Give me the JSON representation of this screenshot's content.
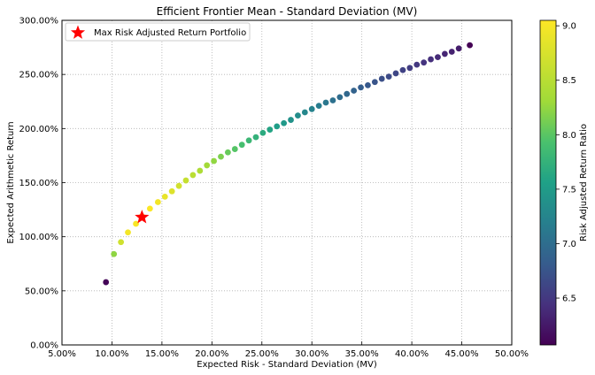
{
  "chart_data": {
    "type": "scatter",
    "title": "Efficient Frontier Mean - Standard Deviation (MV)",
    "xlabel": "Expected Risk - Standard Deviation (MV)",
    "ylabel": "Expected Arithmetic Return",
    "xlim": [
      0.05,
      0.5
    ],
    "ylim": [
      0.0,
      3.0
    ],
    "x_ticks": [
      0.05,
      0.1,
      0.15,
      0.2,
      0.25,
      0.3,
      0.35,
      0.4,
      0.45,
      0.5
    ],
    "x_tick_labels": [
      "5.00%",
      "10.00%",
      "15.00%",
      "20.00%",
      "25.00%",
      "30.00%",
      "35.00%",
      "40.00%",
      "45.00%",
      "50.00%"
    ],
    "y_ticks": [
      0.0,
      0.5,
      1.0,
      1.5,
      2.0,
      2.5,
      3.0
    ],
    "y_tick_labels": [
      "0.00%",
      "50.00%",
      "100.00%",
      "150.00%",
      "200.00%",
      "250.00%",
      "300.00%"
    ],
    "grid": true,
    "legend_placement": "top-left",
    "legend": [
      {
        "label": "Max Risk Adjusted Return Portfolio",
        "marker": "star",
        "color": "#ff0000"
      }
    ],
    "colorbar": {
      "label": "Risk Adjusted Return Ratio",
      "min": 6.07,
      "max": 9.05,
      "ticks": [
        6.5,
        7.0,
        7.5,
        8.0,
        8.5,
        9.0
      ],
      "tick_labels": [
        "6.5",
        "7.0",
        "7.5",
        "8.0",
        "8.5",
        "9.0"
      ],
      "colormap": "viridis"
    },
    "series": [
      {
        "x": [
          0.094,
          0.102,
          0.109,
          0.116,
          0.124,
          0.13,
          0.138,
          0.146,
          0.153,
          0.16,
          0.167,
          0.174,
          0.181,
          0.188,
          0.195,
          0.202,
          0.209,
          0.216,
          0.223,
          0.23,
          0.237,
          0.244,
          0.251,
          0.258,
          0.265,
          0.272,
          0.279,
          0.286,
          0.293,
          0.3,
          0.307,
          0.314,
          0.321,
          0.328,
          0.335,
          0.342,
          0.349,
          0.356,
          0.363,
          0.37,
          0.377,
          0.384,
          0.391,
          0.398,
          0.405,
          0.412,
          0.419,
          0.426,
          0.433,
          0.44,
          0.447,
          0.458
        ],
        "y": [
          0.58,
          0.84,
          0.95,
          1.04,
          1.12,
          1.19,
          1.26,
          1.32,
          1.37,
          1.42,
          1.47,
          1.52,
          1.57,
          1.61,
          1.66,
          1.7,
          1.74,
          1.78,
          1.81,
          1.85,
          1.89,
          1.92,
          1.96,
          1.99,
          2.02,
          2.05,
          2.08,
          2.12,
          2.15,
          2.18,
          2.21,
          2.24,
          2.26,
          2.29,
          2.32,
          2.35,
          2.38,
          2.4,
          2.43,
          2.46,
          2.48,
          2.51,
          2.54,
          2.56,
          2.59,
          2.61,
          2.64,
          2.66,
          2.69,
          2.71,
          2.74,
          2.77
        ],
        "c": [
          6.1,
          8.23,
          8.68,
          8.97,
          9.02,
          9.05,
          9.03,
          8.96,
          8.88,
          8.79,
          8.7,
          8.6,
          8.51,
          8.42,
          8.33,
          8.24,
          8.15,
          8.06,
          7.98,
          7.9,
          7.82,
          7.75,
          7.67,
          7.6,
          7.53,
          7.47,
          7.4,
          7.34,
          7.28,
          7.22,
          7.16,
          7.1,
          7.04,
          6.99,
          6.94,
          6.89,
          6.84,
          6.79,
          6.74,
          6.7,
          6.66,
          6.62,
          6.58,
          6.54,
          6.5,
          6.46,
          6.43,
          6.39,
          6.35,
          6.32,
          6.28,
          6.07
        ]
      }
    ],
    "highlight": {
      "x": 0.13,
      "y": 1.18,
      "marker": "star",
      "color": "#ff0000"
    }
  }
}
